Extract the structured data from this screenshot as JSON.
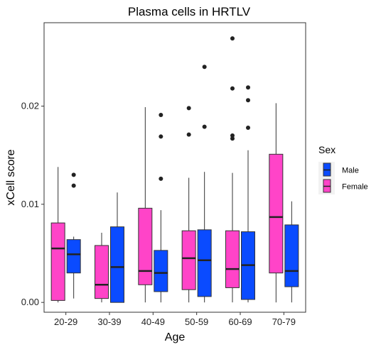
{
  "chart_data": {
    "type": "boxplot",
    "title": "Plasma cells in HRTLV",
    "xlabel": "Age",
    "ylabel": "xCell score",
    "categories": [
      "20-29",
      "30-39",
      "40-49",
      "50-59",
      "60-69",
      "70-79"
    ],
    "ylim": [
      -0.001,
      0.0285
    ],
    "yticks": [
      0.0,
      0.01,
      0.02
    ],
    "ytick_labels": [
      "0.00",
      "0.01",
      "0.02"
    ],
    "grid": false,
    "legend": {
      "title": "Sex",
      "position": "right",
      "entries": [
        {
          "label": "Male",
          "color": "#0A4BFF"
        },
        {
          "label": "Female",
          "color": "#FF44C8"
        }
      ]
    },
    "series": [
      {
        "name": "Female",
        "color": "#FF44C8",
        "boxes": [
          {
            "whisker_low": 0.0,
            "q1": 0.0002,
            "median": 0.0055,
            "q3": 0.0081,
            "whisker_high": 0.0138,
            "outliers": []
          },
          {
            "whisker_low": 0.0,
            "q1": 0.0004,
            "median": 0.0018,
            "q3": 0.0058,
            "whisker_high": 0.0071,
            "outliers": []
          },
          {
            "whisker_low": 0.0,
            "q1": 0.0018,
            "median": 0.0032,
            "q3": 0.0096,
            "whisker_high": 0.0199,
            "outliers": []
          },
          {
            "whisker_low": 0.0,
            "q1": 0.0013,
            "median": 0.0045,
            "q3": 0.0073,
            "whisker_high": 0.0127,
            "outliers": [
              0.0171,
              0.0198
            ]
          },
          {
            "whisker_low": 0.0,
            "q1": 0.0015,
            "median": 0.0034,
            "q3": 0.0073,
            "whisker_high": 0.0132,
            "outliers": [
              0.0167,
              0.017,
              0.0218,
              0.0269
            ]
          },
          {
            "whisker_low": 0.0,
            "q1": 0.003,
            "median": 0.0087,
            "q3": 0.0151,
            "whisker_high": 0.0203,
            "outliers": []
          }
        ]
      },
      {
        "name": "Male",
        "color": "#0A4BFF",
        "boxes": [
          {
            "whisker_low": 0.0004,
            "q1": 0.003,
            "median": 0.0049,
            "q3": 0.0064,
            "whisker_high": 0.0067,
            "outliers": [
              0.0119,
              0.013
            ]
          },
          {
            "whisker_low": 0.0,
            "q1": 0.0,
            "median": 0.0036,
            "q3": 0.0077,
            "whisker_high": 0.0112,
            "outliers": []
          },
          {
            "whisker_low": 0.0,
            "q1": 0.0011,
            "median": 0.003,
            "q3": 0.0053,
            "whisker_high": 0.0094,
            "outliers": [
              0.0126,
              0.0169,
              0.0191
            ]
          },
          {
            "whisker_low": 0.0,
            "q1": 0.0006,
            "median": 0.0043,
            "q3": 0.0074,
            "whisker_high": 0.0133,
            "outliers": [
              0.0179,
              0.024
            ]
          },
          {
            "whisker_low": 0.0,
            "q1": 0.0003,
            "median": 0.0038,
            "q3": 0.0072,
            "whisker_high": 0.0155,
            "outliers": [
              0.0178,
              0.0206,
              0.0219
            ]
          },
          {
            "whisker_low": 0.0,
            "q1": 0.0016,
            "median": 0.0032,
            "q3": 0.0079,
            "whisker_high": 0.0103,
            "outliers": []
          }
        ]
      }
    ]
  }
}
